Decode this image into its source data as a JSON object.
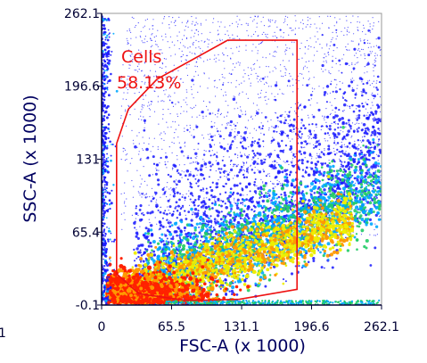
{
  "chart_data": {
    "type": "scatter",
    "plot_style": "density pseudocolor",
    "xlabel": "FSC-A (x 1000)",
    "ylabel": "SSC-A (x 1000)",
    "xlim": [
      0,
      262.1
    ],
    "ylim": [
      -0.1,
      262.1
    ],
    "x_ticks": [
      "0",
      "65.5",
      "131.1",
      "196.6",
      "262.1"
    ],
    "x_tick_values": [
      0,
      65.5,
      131.1,
      196.6,
      262.1
    ],
    "y_ticks": [
      "-0.1",
      "65.4",
      "131",
      "196.6",
      "262.1"
    ],
    "y_tick_values": [
      -0.1,
      65.4,
      131,
      196.6,
      262.1
    ],
    "stray_tick_label": "1",
    "density_colors": [
      "#1a1aff",
      "#00a8ff",
      "#22cc66",
      "#eeee00",
      "#ff9900",
      "#ff2200"
    ],
    "gate": {
      "name": "Cells",
      "percent": "58.13%",
      "color": "#ee1111",
      "vertices": [
        [
          14,
          145
        ],
        [
          25,
          176
        ],
        [
          52,
          203
        ],
        [
          118,
          238
        ],
        [
          183,
          238
        ],
        [
          183,
          14
        ],
        [
          129,
          5
        ],
        [
          80,
          4
        ],
        [
          35,
          10
        ],
        [
          14,
          28
        ],
        [
          14,
          145
        ]
      ]
    }
  }
}
